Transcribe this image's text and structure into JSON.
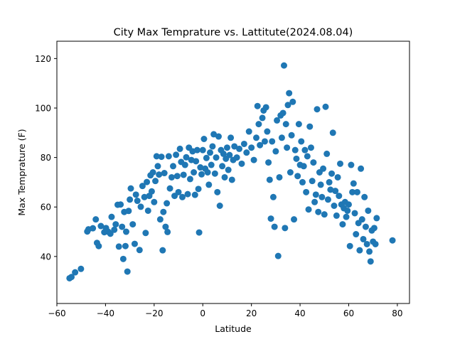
{
  "chart_data": {
    "type": "scatter",
    "title": "City Max Temprature vs. Lattitute(2024.08.04)",
    "xlabel": "Latitude",
    "ylabel": "Max Temprature (F)",
    "xlim": [
      -60,
      85
    ],
    "ylim": [
      21,
      127
    ],
    "xticks": [
      -60,
      -40,
      -20,
      0,
      20,
      40,
      60,
      80
    ],
    "yticks": [
      40,
      60,
      80,
      100,
      120
    ],
    "grid": false,
    "legend": "none",
    "colors": {
      "marker": "#1f77b4",
      "axis": "#000000",
      "background": "#ffffff"
    },
    "points": [
      [
        -54.8,
        31.2
      ],
      [
        -54.0,
        31.7
      ],
      [
        -52.5,
        33.6
      ],
      [
        -50.1,
        35.0
      ],
      [
        -47.5,
        50.1
      ],
      [
        -47.0,
        51.0
      ],
      [
        -45.2,
        51.4
      ],
      [
        -44.0,
        55.0
      ],
      [
        -43.5,
        45.5
      ],
      [
        -42.8,
        44.2
      ],
      [
        -41.9,
        52.3
      ],
      [
        -40.5,
        49.8
      ],
      [
        -39.8,
        51.5
      ],
      [
        -38.9,
        50.0
      ],
      [
        -38.0,
        49.2
      ],
      [
        -37.5,
        56.0
      ],
      [
        -36.4,
        50.8
      ],
      [
        -35.8,
        53.0
      ],
      [
        -35.0,
        60.9
      ],
      [
        -34.5,
        44.0
      ],
      [
        -33.8,
        61.0
      ],
      [
        -33.2,
        52.0
      ],
      [
        -32.7,
        39.0
      ],
      [
        -32.3,
        58.0
      ],
      [
        -31.8,
        44.2
      ],
      [
        -31.5,
        50.0
      ],
      [
        -31.0,
        33.9
      ],
      [
        -30.5,
        58.4
      ],
      [
        -30.0,
        63.0
      ],
      [
        -29.6,
        67.5
      ],
      [
        -28.8,
        53.0
      ],
      [
        -28.0,
        45.1
      ],
      [
        -27.5,
        65.0
      ],
      [
        -26.9,
        62.5
      ],
      [
        -26.0,
        42.6
      ],
      [
        -25.5,
        60.1
      ],
      [
        -24.8,
        68.5
      ],
      [
        -24.0,
        64.0
      ],
      [
        -23.5,
        49.5
      ],
      [
        -23.0,
        70.1
      ],
      [
        -22.5,
        58.5
      ],
      [
        -22.0,
        64.5
      ],
      [
        -21.5,
        72.8
      ],
      [
        -21.0,
        66.3
      ],
      [
        -20.5,
        74.0
      ],
      [
        -20.0,
        62.0
      ],
      [
        -19.5,
        70.5
      ],
      [
        -19.0,
        80.5
      ],
      [
        -18.5,
        76.5
      ],
      [
        -18.0,
        73.1
      ],
      [
        -17.5,
        55.0
      ],
      [
        -17.0,
        80.3
      ],
      [
        -16.5,
        42.5
      ],
      [
        -16.2,
        58.0
      ],
      [
        -15.8,
        73.7
      ],
      [
        -15.3,
        52.0
      ],
      [
        -14.8,
        61.5
      ],
      [
        -14.5,
        49.9
      ],
      [
        -14.0,
        80.5
      ],
      [
        -13.5,
        67.5
      ],
      [
        -12.8,
        72.0
      ],
      [
        -12.2,
        76.5
      ],
      [
        -11.6,
        64.5
      ],
      [
        -11.0,
        81.1
      ],
      [
        -10.5,
        72.5
      ],
      [
        -10.0,
        66.0
      ],
      [
        -9.4,
        83.5
      ],
      [
        -8.9,
        78.2
      ],
      [
        -8.4,
        64.0
      ],
      [
        -7.9,
        73.0
      ],
      [
        -7.3,
        77.0
      ],
      [
        -6.8,
        80.1
      ],
      [
        -6.2,
        65.2
      ],
      [
        -5.7,
        84.0
      ],
      [
        -5.2,
        71.3
      ],
      [
        -4.7,
        79.0
      ],
      [
        -4.2,
        82.5
      ],
      [
        -3.7,
        74.0
      ],
      [
        -3.2,
        64.9
      ],
      [
        -2.8,
        78.5
      ],
      [
        -2.3,
        83.0
      ],
      [
        -1.8,
        67.3
      ],
      [
        -1.5,
        49.7
      ],
      [
        -1.0,
        76.0
      ],
      [
        -0.5,
        73.2
      ],
      [
        0.0,
        83.0
      ],
      [
        0.5,
        87.5
      ],
      [
        1.0,
        75.5
      ],
      [
        1.5,
        79.8
      ],
      [
        2.0,
        74.0
      ],
      [
        2.5,
        69.0
      ],
      [
        3.0,
        82.0
      ],
      [
        3.5,
        77.0
      ],
      [
        4.0,
        84.5
      ],
      [
        4.5,
        89.4
      ],
      [
        5.0,
        73.5
      ],
      [
        5.5,
        80.0
      ],
      [
        6.0,
        66.0
      ],
      [
        6.5,
        88.5
      ],
      [
        7.0,
        60.5
      ],
      [
        7.5,
        83.0
      ],
      [
        8.0,
        76.5
      ],
      [
        8.5,
        81.5
      ],
      [
        9.0,
        72.0
      ],
      [
        9.5,
        79.5
      ],
      [
        10.0,
        84.0
      ],
      [
        10.5,
        75.0
      ],
      [
        11.0,
        81.0
      ],
      [
        11.5,
        88.0
      ],
      [
        12.0,
        71.0
      ],
      [
        12.5,
        79.0
      ],
      [
        13.0,
        84.5
      ],
      [
        14.0,
        80.0
      ],
      [
        15.0,
        83.5
      ],
      [
        16.0,
        77.5
      ],
      [
        17.0,
        85.5
      ],
      [
        18.0,
        82.0
      ],
      [
        19.0,
        90.5
      ],
      [
        20.0,
        84.0
      ],
      [
        21.0,
        79.0
      ],
      [
        22.0,
        88.0
      ],
      [
        22.5,
        100.8
      ],
      [
        23.0,
        93.5
      ],
      [
        23.5,
        85.0
      ],
      [
        24.5,
        96.0
      ],
      [
        25.0,
        99.0
      ],
      [
        25.5,
        86.5
      ],
      [
        26.0,
        100.3
      ],
      [
        26.5,
        90.5
      ],
      [
        27.0,
        78.0
      ],
      [
        27.5,
        71.0
      ],
      [
        28.0,
        55.3
      ],
      [
        28.5,
        86.5
      ],
      [
        29.0,
        64.0
      ],
      [
        29.5,
        52.0
      ],
      [
        30.0,
        82.5
      ],
      [
        30.5,
        95.0
      ],
      [
        31.0,
        40.2
      ],
      [
        31.5,
        72.0
      ],
      [
        32.0,
        97.0
      ],
      [
        32.5,
        88.0
      ],
      [
        33.0,
        98.0
      ],
      [
        33.4,
        117.2
      ],
      [
        33.8,
        51.5
      ],
      [
        34.2,
        93.5
      ],
      [
        34.6,
        84.0
      ],
      [
        35.0,
        101.2
      ],
      [
        35.5,
        106.0
      ],
      [
        36.0,
        74.0
      ],
      [
        36.5,
        89.0
      ],
      [
        37.0,
        102.5
      ],
      [
        37.5,
        55.0
      ],
      [
        38.0,
        83.0
      ],
      [
        38.5,
        79.5
      ],
      [
        39.0,
        72.5
      ],
      [
        39.5,
        93.5
      ],
      [
        40.0,
        77.0
      ],
      [
        40.5,
        86.5
      ],
      [
        41.0,
        70.0
      ],
      [
        41.5,
        76.5
      ],
      [
        42.0,
        83.0
      ],
      [
        42.5,
        66.0
      ],
      [
        43.0,
        80.5
      ],
      [
        43.5,
        59.0
      ],
      [
        44.0,
        92.5
      ],
      [
        44.5,
        84.0
      ],
      [
        45.0,
        70.5
      ],
      [
        45.5,
        78.0
      ],
      [
        46.0,
        62.0
      ],
      [
        46.5,
        65.0
      ],
      [
        47.0,
        99.5
      ],
      [
        47.5,
        58.0
      ],
      [
        48.0,
        74.0
      ],
      [
        48.5,
        69.0
      ],
      [
        49.0,
        64.0
      ],
      [
        49.5,
        75.5
      ],
      [
        50.0,
        57.0
      ],
      [
        50.5,
        100.5
      ],
      [
        51.0,
        81.5
      ],
      [
        51.5,
        63.0
      ],
      [
        52.0,
        70.0
      ],
      [
        52.5,
        67.0
      ],
      [
        53.0,
        73.5
      ],
      [
        53.5,
        90.0
      ],
      [
        54.0,
        60.5
      ],
      [
        54.5,
        66.5
      ],
      [
        55.0,
        56.5
      ],
      [
        55.5,
        72.0
      ],
      [
        56.0,
        64.5
      ],
      [
        56.5,
        77.5
      ],
      [
        57.0,
        61.0
      ],
      [
        57.5,
        53.0
      ],
      [
        58.0,
        59.5
      ],
      [
        58.5,
        62.0
      ],
      [
        59.0,
        56.0
      ],
      [
        59.5,
        58.5
      ],
      [
        60.0,
        61.0
      ],
      [
        60.5,
        44.2
      ],
      [
        61.0,
        77.0
      ],
      [
        61.5,
        66.0
      ],
      [
        62.0,
        69.5
      ],
      [
        62.5,
        57.5
      ],
      [
        63.0,
        49.0
      ],
      [
        63.5,
        66.0
      ],
      [
        64.0,
        53.5
      ],
      [
        64.5,
        42.5
      ],
      [
        65.0,
        75.5
      ],
      [
        65.5,
        55.0
      ],
      [
        66.0,
        47.0
      ],
      [
        66.5,
        64.0
      ],
      [
        67.0,
        52.0
      ],
      [
        67.5,
        45.0
      ],
      [
        68.0,
        58.5
      ],
      [
        68.5,
        42.0
      ],
      [
        69.0,
        38.0
      ],
      [
        69.5,
        50.5
      ],
      [
        70.0,
        46.0
      ],
      [
        70.5,
        51.5
      ],
      [
        71.0,
        45.0
      ],
      [
        71.5,
        55.5
      ],
      [
        78.0,
        46.5
      ]
    ]
  }
}
